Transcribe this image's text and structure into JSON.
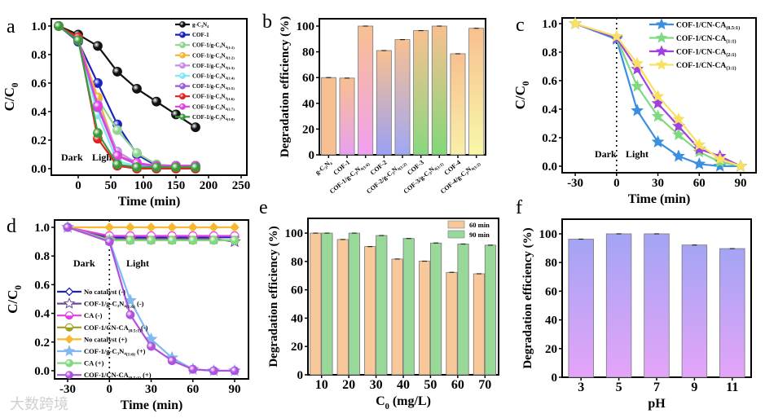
{
  "watermark": "大数跨境",
  "chart_data": [
    {
      "id": "a",
      "panel_label": "a",
      "type": "line",
      "xlabel": "Time (min)",
      "ylabel": "C/C",
      "ylabel_sub": "0",
      "xlim": [
        -41.25,
        258.75
      ],
      "ylim": [
        -0.046,
        1.051
      ],
      "xticks": [
        0,
        50,
        100,
        150,
        200,
        250
      ],
      "xtick_labels": [
        "0",
        "50",
        "100",
        "150",
        "200",
        "250"
      ],
      "yticks": [
        0,
        0.2,
        0.4,
        0.6,
        0.8,
        1.0
      ],
      "ytick_labels": [
        "0.0",
        "0.2",
        "0.4",
        "0.6",
        "0.8",
        "1.0"
      ],
      "annotations": [
        "Dark",
        "Light"
      ],
      "legend_position": "top-right",
      "x": [
        -30,
        0,
        30,
        60,
        90,
        120,
        150,
        180
      ],
      "series": [
        {
          "name": "g-C₃N₄",
          "sub": "",
          "color": "#111111",
          "marker": "circle",
          "values": [
            1.0,
            0.94,
            0.86,
            0.68,
            0.56,
            0.47,
            0.38,
            0.29
          ]
        },
        {
          "name": "COF-1",
          "sub": "",
          "color": "#1a22c0",
          "marker": "circle",
          "values": [
            1.0,
            0.89,
            0.6,
            0.31,
            0.1,
            0.02,
            0.02,
            0.02
          ]
        },
        {
          "name": "COF-1/g-C₃N₄",
          "sub": "(1:1)",
          "color": "#8fd48f",
          "marker": "circle",
          "values": [
            1.0,
            0.9,
            0.49,
            0.27,
            0.11,
            0.03,
            0.02,
            0.02
          ]
        },
        {
          "name": "COF-1/g-C₃N₄",
          "sub": "(1:2)",
          "color": "#f2b632",
          "marker": "circle",
          "values": [
            1.0,
            0.9,
            0.5,
            0.1,
            0.03,
            0.02,
            0.02,
            0.02
          ]
        },
        {
          "name": "COF-1/g-C₃N₄",
          "sub": "(1:3)",
          "color": "#c68ee6",
          "marker": "circle",
          "values": [
            1.0,
            0.9,
            0.45,
            0.12,
            0.04,
            0.02,
            0.02,
            0.02
          ]
        },
        {
          "name": "COF-1/g-C₃N₄",
          "sub": "(1:4)",
          "color": "#7fe6f2",
          "marker": "circle",
          "values": [
            1.0,
            0.9,
            0.38,
            0.05,
            0.02,
            0.02,
            0.02,
            0.02
          ]
        },
        {
          "name": "COF-1/g-C₃N₄",
          "sub": "(1:5)",
          "color": "#9b5bd6",
          "marker": "circle",
          "values": [
            1.0,
            0.9,
            0.43,
            0.09,
            0.03,
            0.02,
            0.02,
            0.02
          ]
        },
        {
          "name": "COF-1/g-C₃N₄",
          "sub": "(1:6)",
          "color": "#e41f1f",
          "marker": "circle",
          "values": [
            1.0,
            0.92,
            0.21,
            0.02,
            0.0,
            0.0,
            0.0,
            0.0
          ]
        },
        {
          "name": "COF-1/g-C₃N₄",
          "sub": "(1:7)",
          "color": "#e040e0",
          "marker": "circle",
          "values": [
            1.0,
            0.9,
            0.44,
            0.09,
            0.04,
            0.02,
            0.02,
            0.02
          ]
        },
        {
          "name": "COF-1/g-C₃N₄",
          "sub": "(1:8)",
          "color": "#3a9a3a",
          "marker": "circle",
          "values": [
            1.0,
            0.9,
            0.25,
            0.03,
            0.01,
            0.01,
            0.01,
            0.01
          ]
        }
      ]
    },
    {
      "id": "b",
      "panel_label": "b",
      "type": "bar",
      "xlabel": "",
      "ylabel": "Degradation efficiency (%)",
      "ylim": [
        0,
        105.7
      ],
      "yticks": [
        0,
        20,
        40,
        60,
        80,
        100
      ],
      "ytick_labels": [
        "0",
        "20",
        "40",
        "60",
        "80",
        "100"
      ],
      "categories": [
        {
          "name": "g-C₃N₄",
          "sub": ""
        },
        {
          "name": "COF-1",
          "sub": ""
        },
        {
          "name": "COF-1/g-C₃N₄",
          "sub": "(1:6)"
        },
        {
          "name": "COF-2",
          "sub": ""
        },
        {
          "name": "COF-2/g-C₃N₄",
          "sub": "(1:2)"
        },
        {
          "name": "COF-3",
          "sub": ""
        },
        {
          "name": "COF-3/g-C₃N₄",
          "sub": "(1:1)"
        },
        {
          "name": "COF-4",
          "sub": ""
        },
        {
          "name": "COF-4/g-C₃N₄",
          "sub": "(1:2)"
        }
      ],
      "values": [
        60.0,
        59.6,
        100.0,
        81.0,
        89.5,
        96.5,
        100.0,
        78.5,
        98.3
      ],
      "bar_top_color": "#f8c090",
      "bar_bottom_colors": [
        "#f8c090",
        "#e8a0f0",
        "#f0a0f0",
        "#9aa0f4",
        "#a0a8f4",
        "#88d880",
        "#80d878",
        "#f8f0a8",
        "#f8f8a8"
      ]
    },
    {
      "id": "c",
      "panel_label": "c",
      "type": "line",
      "xlabel": "Time (min)",
      "ylabel": "C/C",
      "ylabel_sub": "0",
      "xlim": [
        -39.5,
        101.2
      ],
      "ylim": [
        -0.046,
        1.04
      ],
      "xticks": [
        -30,
        0,
        30,
        60,
        90
      ],
      "xtick_labels": [
        "-30",
        "0",
        "30",
        "60",
        "90"
      ],
      "yticks": [
        0,
        0.2,
        0.4,
        0.6,
        0.8,
        1.0
      ],
      "ytick_labels": [
        "0.0",
        "0.2",
        "0.4",
        "0.6",
        "0.8",
        "1.0"
      ],
      "annotations": [
        "Dark",
        "Light"
      ],
      "legend_position": "top-right",
      "x": [
        -30,
        0,
        15,
        30,
        45,
        60,
        75,
        90
      ],
      "series": [
        {
          "name": "COF-1/CN-CA",
          "sub": "(0.5:1)",
          "color": "#3a8fe0",
          "marker": "star",
          "values": [
            1.0,
            0.89,
            0.39,
            0.17,
            0.07,
            0.015,
            0.0,
            0.0
          ]
        },
        {
          "name": "COF-1/CN-CA",
          "sub": "(1:1)",
          "color": "#80d880",
          "marker": "star",
          "values": [
            1.0,
            0.9,
            0.56,
            0.35,
            0.22,
            0.1,
            0.03,
            0.0
          ]
        },
        {
          "name": "COF-1/CN-CA",
          "sub": "(2:1)",
          "color": "#a040e0",
          "marker": "star",
          "values": [
            1.0,
            0.9,
            0.68,
            0.44,
            0.28,
            0.12,
            0.07,
            0.0
          ]
        },
        {
          "name": "COF-1/CN-CA",
          "sub": "(3:1)",
          "color": "#f8e060",
          "marker": "star",
          "values": [
            1.0,
            0.91,
            0.72,
            0.49,
            0.33,
            0.15,
            0.05,
            0.0
          ]
        }
      ]
    },
    {
      "id": "d",
      "panel_label": "d",
      "type": "line",
      "xlabel": "Time (min)",
      "ylabel": "C/C",
      "ylabel_sub": "0",
      "xlim": [
        -39.4,
        99.96
      ],
      "ylim": [
        -0.057,
        1.051
      ],
      "xticks": [
        -30,
        0,
        30,
        60,
        90
      ],
      "xtick_labels": [
        "-30",
        "0",
        "30",
        "60",
        "90"
      ],
      "yticks": [
        0,
        0.2,
        0.4,
        0.6,
        0.8,
        1.0
      ],
      "ytick_labels": [
        "0.0",
        "0.2",
        "0.4",
        "0.6",
        "0.8",
        "1.0"
      ],
      "annotations": [
        "Dark",
        "Light"
      ],
      "legend_position": "bottom-left",
      "x": [
        -30,
        0,
        15,
        30,
        45,
        60,
        75,
        90
      ],
      "series": [
        {
          "name": "No catalyst (-)",
          "sub": "",
          "tail": "",
          "color": "#1a22c0",
          "marker": "diamond-open",
          "values": [
            1.0,
            0.93,
            0.93,
            0.93,
            0.93,
            0.93,
            0.93,
            0.93
          ]
        },
        {
          "name": "COF-1/g-C₃N₄",
          "sub": "(1:6)",
          "tail": " (-)",
          "color": "#6a4a9a",
          "marker": "star-open",
          "values": [
            1.0,
            0.92,
            0.92,
            0.92,
            0.92,
            0.92,
            0.92,
            0.9
          ]
        },
        {
          "name": "CA (-)",
          "sub": "",
          "tail": "",
          "color": "#e040e0",
          "marker": "circle-half",
          "values": [
            1.0,
            0.94,
            0.94,
            0.94,
            0.94,
            0.94,
            0.94,
            0.94
          ]
        },
        {
          "name": "COF-1/CN-CA",
          "sub": "(0.5:1)",
          "tail": "(-)",
          "color": "#a0a020",
          "marker": "circle-half",
          "values": [
            1.0,
            0.91,
            0.91,
            0.91,
            0.91,
            0.91,
            0.91,
            0.91
          ]
        },
        {
          "name": "No catalyst (+)",
          "sub": "",
          "tail": "",
          "color": "#f8b830",
          "marker": "diamond",
          "values": [
            1.0,
            1.0,
            1.0,
            1.0,
            1.0,
            1.0,
            1.0,
            1.0
          ]
        },
        {
          "name": "COF-1/g-C₃N₄",
          "sub": "(1:6)",
          "tail": " (+)",
          "color": "#80b8f0",
          "marker": "star",
          "values": [
            1.0,
            0.91,
            0.49,
            0.22,
            0.09,
            0.01,
            0.0,
            0.0
          ]
        },
        {
          "name": "CA (+)",
          "sub": "",
          "tail": "",
          "color": "#80d880",
          "marker": "circle",
          "values": [
            1.0,
            0.91,
            0.91,
            0.91,
            0.91,
            0.91,
            0.91,
            0.91
          ]
        },
        {
          "name": "COF-1/CN-CA",
          "sub": "(0.5:1)",
          "tail": " (+)",
          "color": "#b050e0",
          "marker": "circle",
          "values": [
            1.0,
            0.9,
            0.39,
            0.17,
            0.07,
            0.01,
            0.0,
            0.0
          ]
        }
      ]
    },
    {
      "id": "e",
      "panel_label": "e",
      "type": "bar",
      "xlabel": "C",
      "xlabel_sub": "0",
      "xlabel_tail": " (mg/L)",
      "ylabel": "Degradation efficiency (%)",
      "ylim": [
        0,
        110.4
      ],
      "yticks": [
        0,
        20,
        40,
        60,
        80,
        100
      ],
      "ytick_labels": [
        "0",
        "20",
        "40",
        "60",
        "80",
        "100"
      ],
      "categories": [
        "10",
        "20",
        "30",
        "40",
        "50",
        "60",
        "70"
      ],
      "legend_position": "top-right",
      "series": [
        {
          "name": "60 min",
          "color": "#f8c89a",
          "values": [
            100.0,
            95.5,
            90.5,
            81.7,
            80.2,
            72.3,
            71.3
          ]
        },
        {
          "name": "90 min",
          "color": "#98d898",
          "values": [
            100.0,
            100.0,
            98.3,
            96.2,
            93.0,
            92.3,
            91.5
          ]
        }
      ]
    },
    {
      "id": "f",
      "panel_label": "f",
      "type": "bar",
      "xlabel": "pH",
      "ylabel": "Degradation efficiency (%)",
      "ylim": [
        0,
        110.2
      ],
      "yticks": [
        0,
        20,
        40,
        60,
        80,
        100
      ],
      "ytick_labels": [
        "0",
        "20",
        "40",
        "60",
        "80",
        "100"
      ],
      "categories": [
        "3",
        "5",
        "7",
        "9",
        "11"
      ],
      "values": [
        96.3,
        100.0,
        100.0,
        92.2,
        89.7
      ],
      "bar_top_color": "#a4a4f4",
      "bar_bottom_color": "#e4a4f8"
    }
  ]
}
